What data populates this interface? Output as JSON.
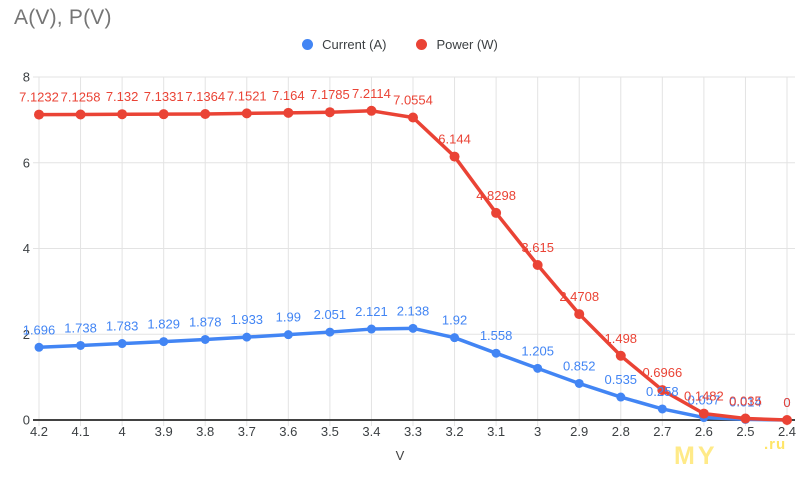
{
  "watermark": {
    "text_main": "MY",
    "text_suffix": ".ru"
  },
  "chart_data": {
    "type": "line",
    "title": "A(V), P(V)",
    "xlabel": "V",
    "ylabel": "",
    "ylim": [
      0,
      8
    ],
    "y_ticks": [
      0,
      2,
      4,
      6,
      8
    ],
    "grid": true,
    "legend_position": "top",
    "x_tick_labels": [
      "4.2",
      "4.1",
      "4",
      "3.9",
      "3.8",
      "3.7",
      "3.6",
      "3.5",
      "3.4",
      "3.3",
      "3.2",
      "3.1",
      "3",
      "2.9",
      "2.8",
      "2.7",
      "2.6",
      "2.5",
      "2.4"
    ],
    "categories": [
      4.2,
      4.1,
      4.0,
      3.9,
      3.8,
      3.7,
      3.6,
      3.5,
      3.4,
      3.3,
      3.2,
      3.1,
      3.0,
      2.9,
      2.8,
      2.7,
      2.6,
      2.5,
      2.4
    ],
    "series": [
      {
        "name": "Current (A)",
        "color": "#4285F4",
        "values": [
          1.696,
          1.738,
          1.783,
          1.829,
          1.878,
          1.933,
          1.99,
          2.051,
          2.121,
          2.138,
          1.92,
          1.558,
          1.205,
          0.852,
          0.535,
          0.258,
          0.057,
          0.014,
          0
        ],
        "labels": [
          "1.696",
          "1.738",
          "1.783",
          "1.829",
          "1.878",
          "1.933",
          "1.99",
          "2.051",
          "2.121",
          "2.138",
          "1.92",
          "1.558",
          "1.205",
          "0.852",
          "0.535",
          "0.258",
          "0.057",
          "0.014",
          "0"
        ]
      },
      {
        "name": "Power (W)",
        "color": "#EA4335",
        "values": [
          7.1232,
          7.1258,
          7.132,
          7.1331,
          7.1364,
          7.1521,
          7.164,
          7.1785,
          7.2114,
          7.0554,
          6.144,
          4.8298,
          3.615,
          2.4708,
          1.498,
          0.6966,
          0.1482,
          0.035,
          0
        ],
        "labels": [
          "7.1232",
          "7.1258",
          "7.132",
          "7.1331",
          "7.1364",
          "7.1521",
          "7.164",
          "7.1785",
          "7.2114",
          "7.0554",
          "6.144",
          "4.8298",
          "3.615",
          "2.4708",
          "1.498",
          "0.6966",
          "0.1482",
          "0.035",
          "0"
        ]
      }
    ]
  }
}
